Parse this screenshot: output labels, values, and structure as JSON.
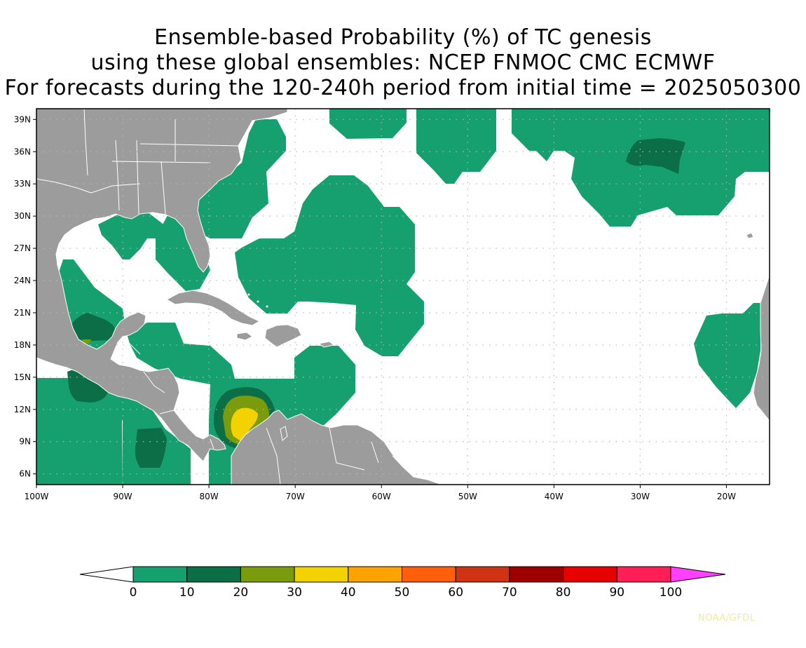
{
  "title": {
    "line1": "Ensemble-based Probability (%) of TC genesis",
    "line2": "using these global ensembles:   NCEP FNMOC CMC ECMWF",
    "line3": "For forecasts during the 120-240h period from initial time = 2025050300"
  },
  "map": {
    "lon_range": [
      -100,
      -15
    ],
    "lat_range": [
      5,
      40
    ],
    "lon_ticks": [
      {
        "value": -100,
        "label": "100W"
      },
      {
        "value": -90,
        "label": "90W"
      },
      {
        "value": -80,
        "label": "80W"
      },
      {
        "value": -70,
        "label": "70W"
      },
      {
        "value": -60,
        "label": "60W"
      },
      {
        "value": -50,
        "label": "50W"
      },
      {
        "value": -40,
        "label": "40W"
      },
      {
        "value": -30,
        "label": "30W"
      },
      {
        "value": -20,
        "label": "20W"
      }
    ],
    "lat_ticks": [
      {
        "value": 6,
        "label": "6N"
      },
      {
        "value": 9,
        "label": "9N"
      },
      {
        "value": 12,
        "label": "12N"
      },
      {
        "value": 15,
        "label": "15N"
      },
      {
        "value": 18,
        "label": "18N"
      },
      {
        "value": 21,
        "label": "21N"
      },
      {
        "value": 24,
        "label": "24N"
      },
      {
        "value": 27,
        "label": "27N"
      },
      {
        "value": 30,
        "label": "30N"
      },
      {
        "value": 33,
        "label": "33N"
      },
      {
        "value": 36,
        "label": "36N"
      },
      {
        "value": 39,
        "label": "39N"
      }
    ],
    "grid": "dotted",
    "land_color": "#9c9c9c",
    "ocean_color": "#ffffff"
  },
  "colorbar": {
    "levels": [
      0,
      10,
      20,
      30,
      40,
      50,
      60,
      70,
      80,
      90,
      100
    ],
    "colors": [
      "#16a070",
      "#0b6e46",
      "#7a9b0c",
      "#f2d200",
      "#ffa300",
      "#ff5e0a",
      "#cf3314",
      "#9e0000",
      "#e60000",
      "#ff1e55"
    ],
    "under_color": "#ffffff",
    "over_color": "#ff40ff"
  },
  "credit": "NOAA/GFDL"
}
